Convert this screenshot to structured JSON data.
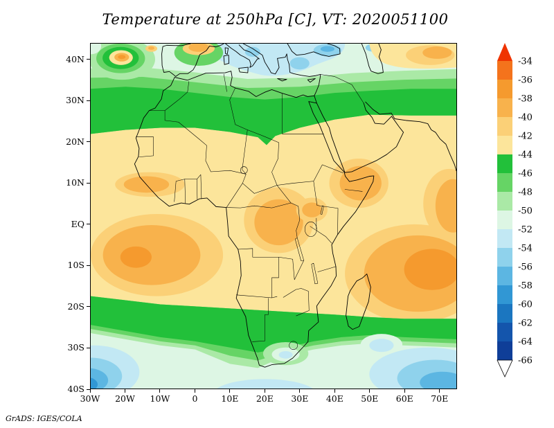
{
  "title": "Temperature at 250hPa [C], VT: 2020051100",
  "credit": "GrADS: IGES/COLA",
  "chart_data": {
    "type": "heatmap",
    "title": "Temperature at 250hPa [C], VT: 2020051100",
    "variable": "Temperature",
    "level": "250hPa",
    "units": "C",
    "valid_time": "2020051100",
    "x_axis": {
      "ticks": [
        "30W",
        "20W",
        "10W",
        "0",
        "10E",
        "20E",
        "30E",
        "40E",
        "50E",
        "60E",
        "70E"
      ],
      "range_deg_lon": [
        -30,
        75
      ]
    },
    "y_axis": {
      "ticks": [
        "40N",
        "30N",
        "20N",
        "10N",
        "EQ",
        "10S",
        "20S",
        "30S",
        "40S"
      ],
      "range_deg_lat": [
        -40,
        44
      ]
    },
    "colorbar": {
      "levels": [
        -34,
        -36,
        -38,
        -40,
        -42,
        -44,
        -46,
        -48,
        -50,
        -52,
        -54,
        -56,
        -58,
        -60,
        -62,
        -64,
        -66
      ],
      "cap_top_color": "#ef3300",
      "segment_colors": [
        "#f4731c",
        "#f59a2e",
        "#f8b24c",
        "#fbd077",
        "#fce59b",
        "#22c03a",
        "#66d465",
        "#aae9a6",
        "#ddf6e4",
        "#c2e8f4",
        "#8fd2ec",
        "#5cb6e2",
        "#3197d4",
        "#1b76c0",
        "#1455ac",
        "#0f3e98"
      ],
      "cap_bottom_color": "#ffffff",
      "orientation": "vertical-right"
    },
    "grid_estimate": {
      "lons": [
        -30,
        -20,
        -10,
        0,
        10,
        20,
        30,
        40,
        50,
        60,
        70
      ],
      "lats": [
        40,
        30,
        20,
        10,
        0,
        -10,
        -20,
        -30,
        -40
      ],
      "values": [
        [
          -49,
          -40,
          -46,
          -42,
          -51,
          -52,
          -53,
          -52,
          -50,
          -45,
          -41
        ],
        [
          -45,
          -45,
          -45,
          -45,
          -46,
          -46,
          -45,
          -45,
          -44,
          -44,
          -44
        ],
        [
          -43,
          -43,
          -43,
          -43,
          -43,
          -45,
          -43,
          -42,
          -42,
          -42,
          -42
        ],
        [
          -41,
          -39,
          -40,
          -41,
          -42,
          -41,
          -40,
          -39,
          -40,
          -41,
          -41
        ],
        [
          -41,
          -41,
          -41,
          -41,
          -40,
          -39,
          -39,
          -40,
          -41,
          -41,
          -40
        ],
        [
          -39,
          -38,
          -39,
          -40,
          -41,
          -40,
          -41,
          -40,
          -39,
          -37,
          -37
        ],
        [
          -45,
          -44,
          -43,
          -43,
          -43,
          -44,
          -44,
          -43,
          -42,
          -40,
          -41
        ],
        [
          -51,
          -48,
          -47,
          -46,
          -46,
          -47,
          -48,
          -47,
          -47,
          -48,
          -50
        ],
        [
          -55,
          -53,
          -50,
          -49,
          -50,
          -50,
          -49,
          -50,
          -52,
          -57,
          -58
        ]
      ]
    },
    "features": [
      "Warm band (-36 to -40C, orange) over tropical South Atlantic, Congo Basin, Ethiopian Highlands and tropical Indian Ocean",
      "Cold green bands (-44 to -50C) across the subtropics near 25-32N and 20-30S",
      "Coldest air (-52 to -64C, blue) over Mediterranean/Black Sea region and Southern Ocean corners",
      "Cut-off warm core west of Iberia near 20W, 41N and warm spot over Iberia"
    ]
  }
}
